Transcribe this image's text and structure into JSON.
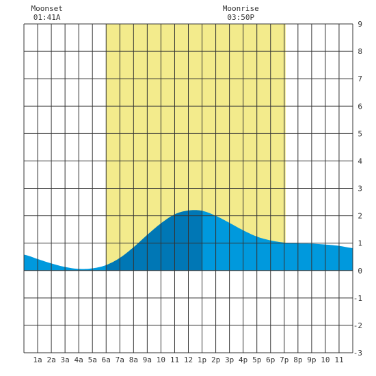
{
  "chart_data": {
    "type": "area",
    "title": "",
    "xlabel": "",
    "ylabel": "",
    "x_ticks": [
      "1a",
      "2a",
      "3a",
      "4a",
      "5a",
      "6a",
      "7a",
      "8a",
      "9a",
      "10",
      "11",
      "12",
      "1p",
      "2p",
      "3p",
      "4p",
      "5p",
      "6p",
      "7p",
      "8p",
      "9p",
      "10",
      "11"
    ],
    "y_ticks": [
      "9",
      "8",
      "7",
      "6",
      "5",
      "4",
      "3",
      "2",
      "1",
      "0",
      "-1",
      "-2",
      "-3"
    ],
    "xlim": [
      0,
      24
    ],
    "ylim": [
      -3,
      9
    ],
    "grid": true,
    "daylight": {
      "start_hour": 6,
      "end_hour": 19.1
    },
    "tide_series": {
      "x": [
        0,
        1,
        2,
        3,
        4,
        5,
        6,
        7,
        8,
        9,
        10,
        11,
        12,
        13,
        14,
        15,
        16,
        17,
        18,
        19,
        20,
        21,
        22,
        23,
        24
      ],
      "values": [
        0.58,
        0.42,
        0.26,
        0.13,
        0.06,
        0.08,
        0.2,
        0.46,
        0.85,
        1.3,
        1.72,
        2.05,
        2.19,
        2.18,
        2.0,
        1.74,
        1.47,
        1.24,
        1.1,
        1.02,
        0.99,
        0.98,
        0.95,
        0.9,
        0.82
      ]
    },
    "dark_fill_range": [
      6,
      13
    ],
    "moon_events": [
      {
        "name": "Moonset",
        "time": "01:41A",
        "hour": 1.68
      },
      {
        "name": "Moonrise",
        "time": "03:50P",
        "hour": 15.83
      }
    ]
  },
  "colors": {
    "daylight": "#f3eb8c",
    "tide": "#0099dd",
    "tide_dark": "#0077b5",
    "grid": "#333333",
    "background": "#ffffff"
  }
}
